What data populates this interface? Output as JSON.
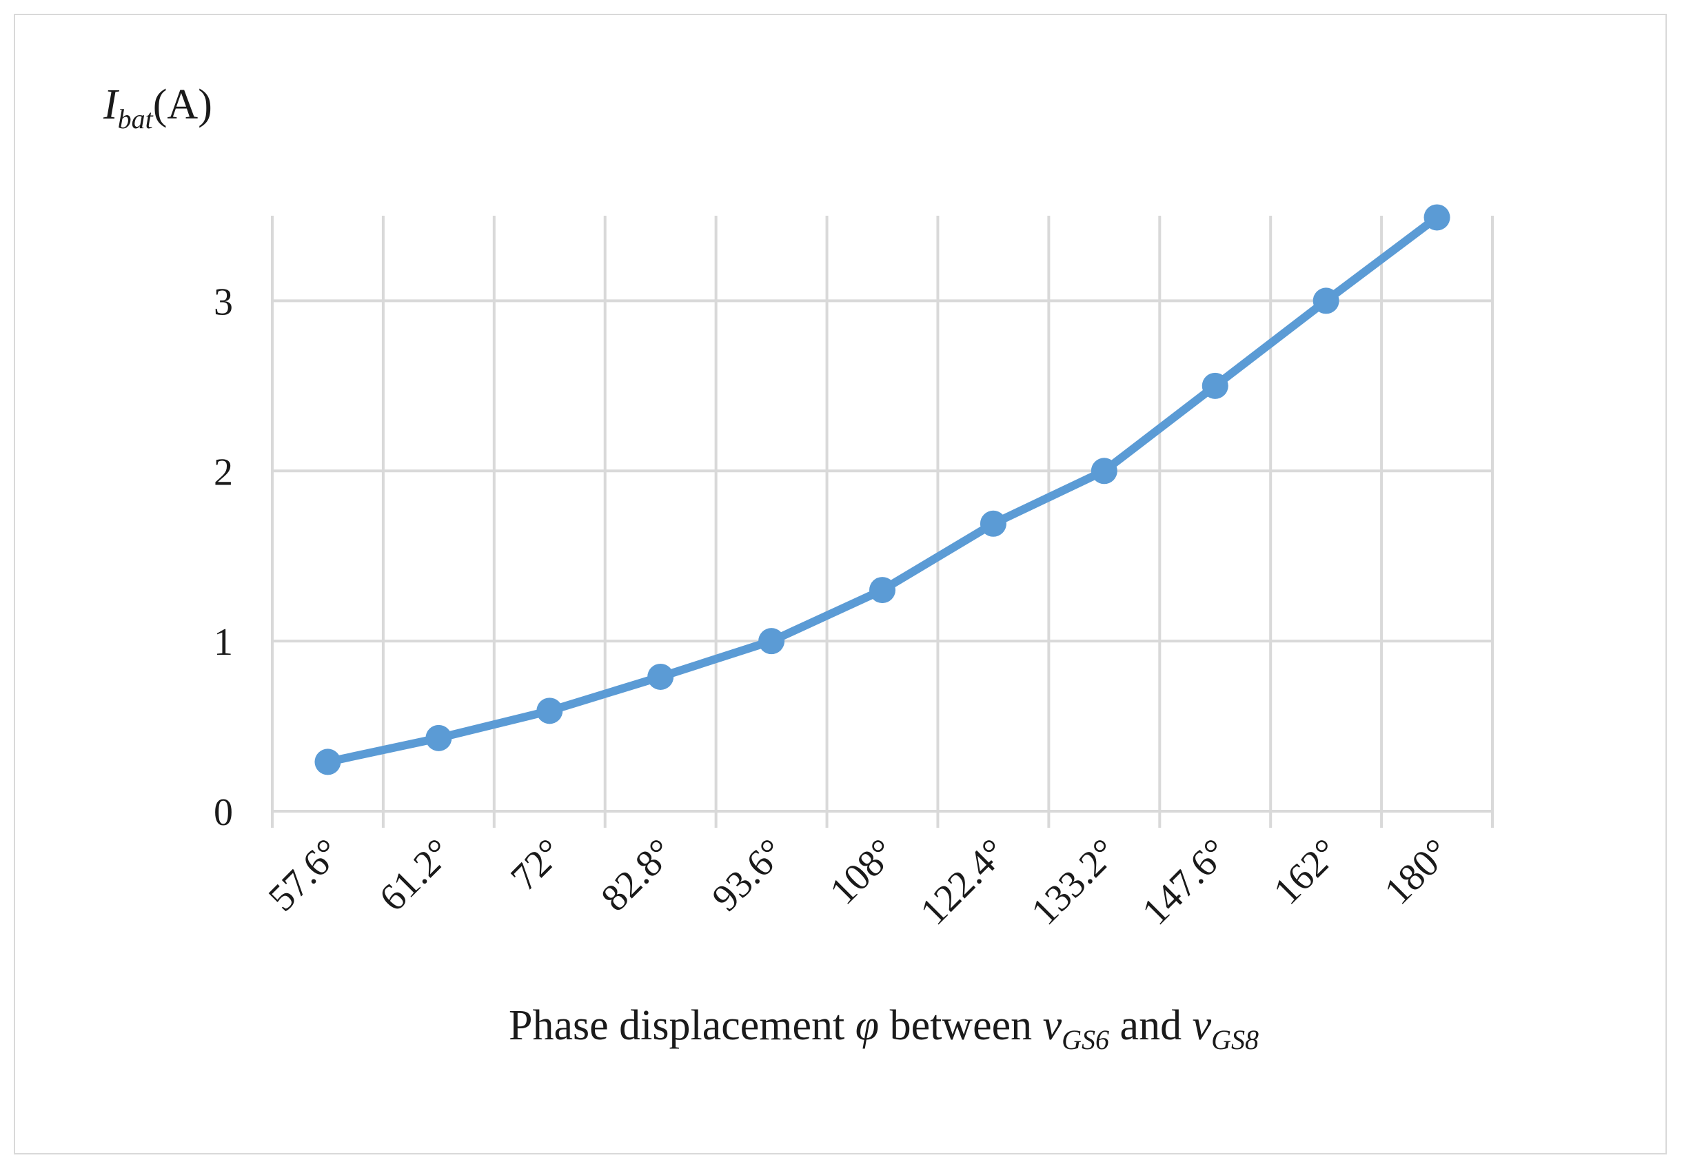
{
  "chart_data": {
    "type": "line",
    "title": "",
    "ylabel": {
      "symbol": "I",
      "subscript": "bat",
      "unit": "(A)"
    },
    "xlabel": {
      "prefix": "Phase displacement ",
      "phi": "φ",
      "middle": " between ",
      "var1": "v",
      "sub1": "GS6",
      "and": " and ",
      "var2": "v",
      "sub2": "GS8"
    },
    "categories": [
      "57.6°",
      "61.2°",
      "72°",
      "82.8°",
      "93.6°",
      "108°",
      "122.4°",
      "133.2°",
      "147.6°",
      "162°",
      "180°"
    ],
    "series": [
      {
        "name": "Ibat",
        "values": [
          0.29,
          0.43,
          0.59,
          0.79,
          1.0,
          1.3,
          1.69,
          2.0,
          2.5,
          3.0,
          3.49
        ]
      }
    ],
    "yticks": [
      "0",
      "1",
      "2",
      "3"
    ],
    "ylim": [
      0,
      3.5
    ],
    "grid": true,
    "legend": "none",
    "colors": {
      "line": "#5b9bd5",
      "grid": "#d9d9d9"
    }
  }
}
